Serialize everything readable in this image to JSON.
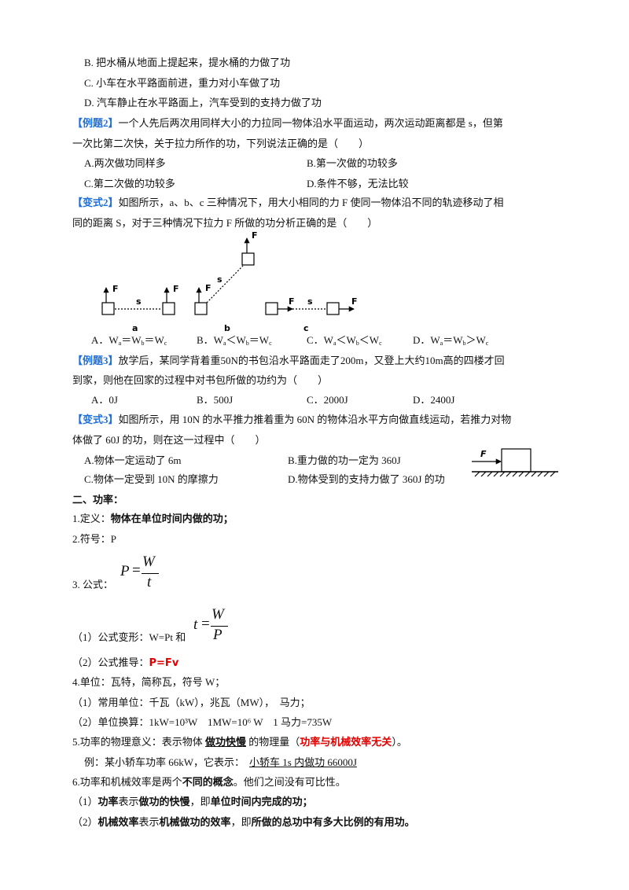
{
  "prev_options": [
    "B. 把水桶从地面上提起来，提水桶的力做了功",
    "C. 小车在水平路面前进，重力对小车做了功",
    "D. 汽车静止在水平路面上，汽车受到的支持力做了功"
  ],
  "example2": {
    "tag": "【例题2】",
    "stem": [
      "一个人先后两次用同样大小的力拉同一物体沿水平面运动，两次运动距离都是 s，但第",
      "一次比第二次快，关于拉力所作的功，下列说法正确的是（　　）"
    ],
    "options": [
      "A.两次做功同样多",
      "B.第一次做的功较多",
      "C.第二次做的功较多",
      "D.条件不够，无法比较"
    ]
  },
  "variant2": {
    "tag": "【变式2】",
    "stem": [
      "如图所示，a、b、c 三种情况下，用大小相同的力 F 使同一物体沿不同的轨迹移动了相",
      "同的距离 S，对于三种情况下拉力 F 所做的功分析正确的是（　　）"
    ],
    "figure": {
      "force": "F",
      "distance": "s",
      "cases": [
        "a",
        "b",
        "c"
      ]
    },
    "options": [
      [
        "A．W",
        "a",
        "＝W",
        "b",
        "＝W",
        "c"
      ],
      [
        "B．W",
        "a",
        "＜W",
        "b",
        "＝W",
        "c"
      ],
      [
        "C．W",
        "a",
        "＜W",
        "b",
        "＜W",
        "c"
      ],
      [
        "D．W",
        "a",
        "＝W",
        "b",
        "＞W",
        "c"
      ]
    ]
  },
  "example3": {
    "tag": "【例题3】",
    "stem": [
      "放学后，某同学背着重50N的书包沿水平路面走了200m，又登上大约10m高的四楼才回",
      "到家，则他在回家的过程中对书包所做的功约为（　　）"
    ],
    "options": [
      "A．0J",
      "B．500J",
      "C．2000J",
      "D．2400J"
    ]
  },
  "variant3": {
    "tag": "【变式3】",
    "stem": [
      "如图所示，用 10N 的水平推力推着重为 60N 的物体沿水平方向做直线运动，若推力对物",
      "体做了 60J 的功，则在这一过程中（　　）"
    ],
    "figure": {
      "force": "F"
    },
    "options": [
      "A.物体一定运动了 6m",
      "B.重力做的功一定为 360J",
      "C.物体一定受到 10N 的摩擦力",
      "D.物体受到的支持力做了 360J 的功"
    ]
  },
  "power": {
    "heading": "二、功率：",
    "definition": {
      "label": "1.定义：",
      "text": "物体在单位时间内做的功；"
    },
    "symbol": "2.符号：P",
    "formula": {
      "label": "3. 公式：",
      "lhs": "P",
      "eq": "=",
      "num": "W",
      "den": "t"
    },
    "transform": {
      "label": "（1）公式变形：W=Pt 和",
      "lhs": "t",
      "eq": "=",
      "num": "W",
      "den": "P"
    },
    "derive": {
      "label": "（2）公式推导：",
      "text": "P=Fv"
    },
    "units": [
      "4.单位：瓦特，简称瓦，符号 W；",
      "（1）常用单位：千瓦（kW），兆瓦（MW），　马力；",
      "（2）单位换算：1kW=10³W　1MW=10⁶ W　1 马力=735W"
    ],
    "meaning": {
      "prefix": "5.功率的物理意义：表示物体 ",
      "key": "做功快慢",
      "middle": " 的物理量（",
      "note": "功率与机械效率无关",
      "suffix": "）。"
    },
    "example": {
      "prefix": "例：某小轿车功率 66kW，它表示：",
      "answer": "小轿车 1s 内做功 66000J"
    },
    "compare": {
      "prefix": "6.功率和机械效率是两个",
      "key": "不同的概念",
      "suffix": "。他们之间没有可比性。"
    },
    "points": [
      [
        "（1）",
        "功率",
        "表示",
        "做功的快慢",
        "，即",
        "单位时间内完成的功；"
      ],
      [
        "（2）",
        "机械效率",
        "表示",
        "机械做功的效率",
        "，即",
        "所做的总功中有多大比例的有用功。"
      ]
    ]
  }
}
